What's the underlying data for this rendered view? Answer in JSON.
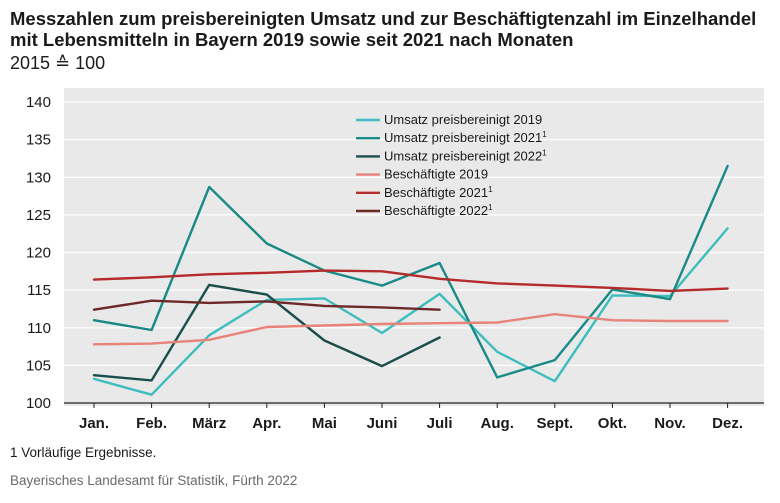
{
  "title": "Messzahlen zum preisbereinigten Umsatz und zur Beschäftigtenzahl im Einzelhandel mit Lebensmitteln in Bayern 2019 sowie seit 2021 nach Monaten",
  "subtitle": "2015 ≙ 100",
  "footnote": "1  Vorläufige Ergebnisse.",
  "source": "Bayerisches Landesamt für Statistik, Fürth 2022",
  "chart_data": {
    "type": "line",
    "categories": [
      "Jan.",
      "Feb.",
      "März",
      "Apr.",
      "Mai",
      "Juni",
      "Juli",
      "Aug.",
      "Sept.",
      "Okt.",
      "Nov.",
      "Dez."
    ],
    "ylim": [
      100,
      140
    ],
    "yticks": [
      100,
      105,
      110,
      115,
      120,
      125,
      130,
      135,
      140
    ],
    "grid": true,
    "legend_position": "top-center",
    "series": [
      {
        "name": "Umsatz preisbereinigt 2019",
        "sup": "",
        "color": "#3dbdbd",
        "values": [
          103.2,
          101.1,
          109.0,
          113.7,
          113.9,
          109.3,
          114.5,
          106.8,
          102.9,
          114.3,
          114.2,
          123.2
        ]
      },
      {
        "name": "Umsatz preisbereinigt 2021",
        "sup": "1",
        "color": "#1a8a86",
        "values": [
          111.0,
          109.7,
          128.7,
          121.2,
          117.6,
          115.6,
          118.6,
          103.4,
          105.7,
          115.1,
          113.8,
          131.5
        ]
      },
      {
        "name": "Umsatz preisbereinigt 2022",
        "sup": "1",
        "color": "#1b4d4b",
        "values": [
          103.7,
          103.0,
          115.7,
          114.4,
          108.3,
          104.9,
          108.7,
          null,
          null,
          null,
          null,
          null
        ]
      },
      {
        "name": "Beschäftigte 2019",
        "sup": "",
        "color": "#e8837a",
        "values": [
          107.8,
          107.9,
          108.4,
          110.1,
          110.3,
          110.5,
          110.6,
          110.7,
          111.8,
          111.0,
          110.9,
          110.9
        ]
      },
      {
        "name": "Beschäftigte 2021",
        "sup": "1",
        "color": "#b52a2a",
        "values": [
          116.4,
          116.7,
          117.1,
          117.3,
          117.6,
          117.5,
          116.5,
          115.9,
          115.6,
          115.3,
          114.9,
          115.2
        ]
      },
      {
        "name": "Beschäftigte 2022",
        "sup": "1",
        "color": "#6e2828",
        "values": [
          112.4,
          113.6,
          113.3,
          113.5,
          112.9,
          112.7,
          112.4,
          null,
          null,
          null,
          null,
          null
        ]
      }
    ]
  }
}
